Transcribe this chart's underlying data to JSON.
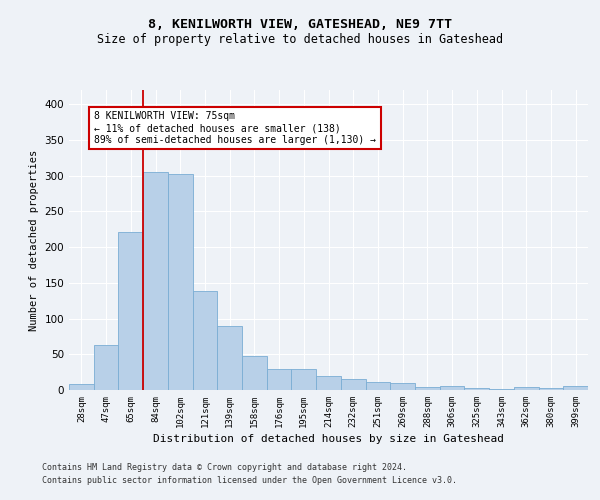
{
  "title1": "8, KENILWORTH VIEW, GATESHEAD, NE9 7TT",
  "title2": "Size of property relative to detached houses in Gateshead",
  "xlabel": "Distribution of detached houses by size in Gateshead",
  "ylabel": "Number of detached properties",
  "categories": [
    "28sqm",
    "47sqm",
    "65sqm",
    "84sqm",
    "102sqm",
    "121sqm",
    "139sqm",
    "158sqm",
    "176sqm",
    "195sqm",
    "214sqm",
    "232sqm",
    "251sqm",
    "269sqm",
    "288sqm",
    "306sqm",
    "325sqm",
    "343sqm",
    "362sqm",
    "380sqm",
    "399sqm"
  ],
  "values": [
    8,
    63,
    221,
    305,
    303,
    139,
    89,
    47,
    30,
    30,
    19,
    15,
    11,
    10,
    4,
    5,
    3,
    2,
    4,
    3,
    5
  ],
  "bar_color": "#b8d0e8",
  "bar_edge_color": "#7aadd4",
  "vline_color": "#cc0000",
  "vline_x_idx": 2.5,
  "annotation_text": "8 KENILWORTH VIEW: 75sqm\n← 11% of detached houses are smaller (138)\n89% of semi-detached houses are larger (1,130) →",
  "annotation_box_color": "#ffffff",
  "annotation_box_edge": "#cc0000",
  "ylim": [
    0,
    420
  ],
  "yticks": [
    0,
    50,
    100,
    150,
    200,
    250,
    300,
    350,
    400
  ],
  "footer1": "Contains HM Land Registry data © Crown copyright and database right 2024.",
  "footer2": "Contains public sector information licensed under the Open Government Licence v3.0.",
  "background_color": "#eef2f7",
  "grid_color": "#ffffff"
}
